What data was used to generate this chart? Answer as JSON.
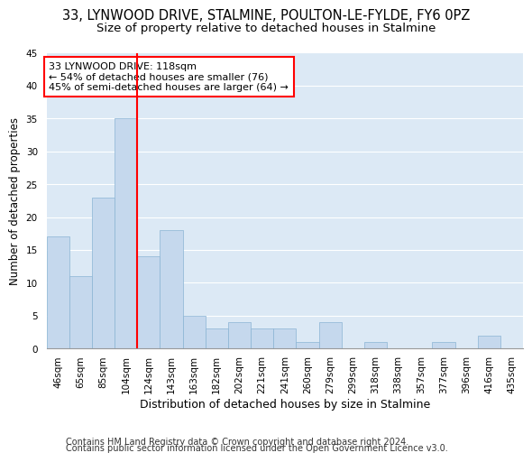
{
  "title1": "33, LYNWOOD DRIVE, STALMINE, POULTON-LE-FYLDE, FY6 0PZ",
  "title2": "Size of property relative to detached houses in Stalmine",
  "xlabel": "Distribution of detached houses by size in Stalmine",
  "ylabel": "Number of detached properties",
  "categories": [
    "46sqm",
    "65sqm",
    "85sqm",
    "104sqm",
    "124sqm",
    "143sqm",
    "163sqm",
    "182sqm",
    "202sqm",
    "221sqm",
    "241sqm",
    "260sqm",
    "279sqm",
    "299sqm",
    "318sqm",
    "338sqm",
    "357sqm",
    "377sqm",
    "396sqm",
    "416sqm",
    "435sqm"
  ],
  "values": [
    17,
    11,
    23,
    35,
    14,
    18,
    5,
    3,
    4,
    3,
    3,
    1,
    4,
    0,
    1,
    0,
    0,
    1,
    0,
    2,
    0
  ],
  "bar_color": "#c5d8ed",
  "bar_edge_color": "#8ab4d4",
  "red_line_x": 3.5,
  "annotation_line1": "33 LYNWOOD DRIVE: 118sqm",
  "annotation_line2": "← 54% of detached houses are smaller (76)",
  "annotation_line3": "45% of semi-detached houses are larger (64) →",
  "annotation_box_color": "white",
  "annotation_box_edge": "red",
  "ylim": [
    0,
    45
  ],
  "yticks": [
    0,
    5,
    10,
    15,
    20,
    25,
    30,
    35,
    40,
    45
  ],
  "footer1": "Contains HM Land Registry data © Crown copyright and database right 2024.",
  "footer2": "Contains public sector information licensed under the Open Government Licence v3.0.",
  "plot_bg_color": "#dce9f5",
  "grid_color": "white",
  "title1_fontsize": 10.5,
  "title2_fontsize": 9.5,
  "xlabel_fontsize": 9,
  "ylabel_fontsize": 8.5,
  "tick_fontsize": 7.5,
  "annotation_fontsize": 8,
  "footer_fontsize": 7
}
